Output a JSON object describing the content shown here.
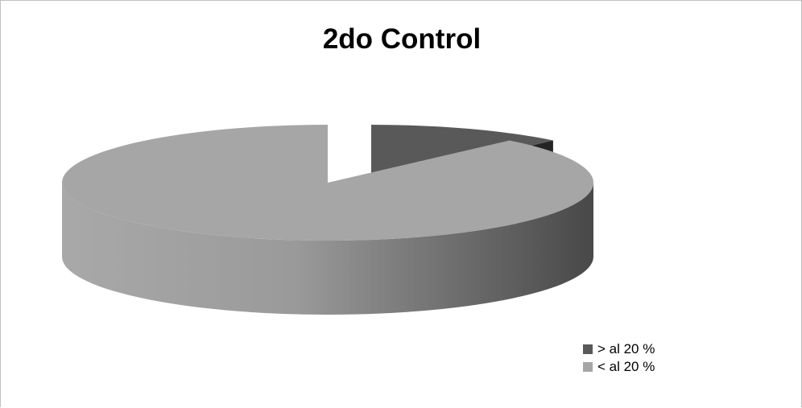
{
  "chart_data": {
    "type": "pie",
    "title": "2do Control",
    "categories": [
      "> al 20 %",
      "< al 20 %"
    ],
    "values": [
      12,
      88
    ],
    "colors": [
      "#595959",
      "#a6a6a6"
    ],
    "exploded": true,
    "three_d": true,
    "legend_position": "bottom-right"
  }
}
